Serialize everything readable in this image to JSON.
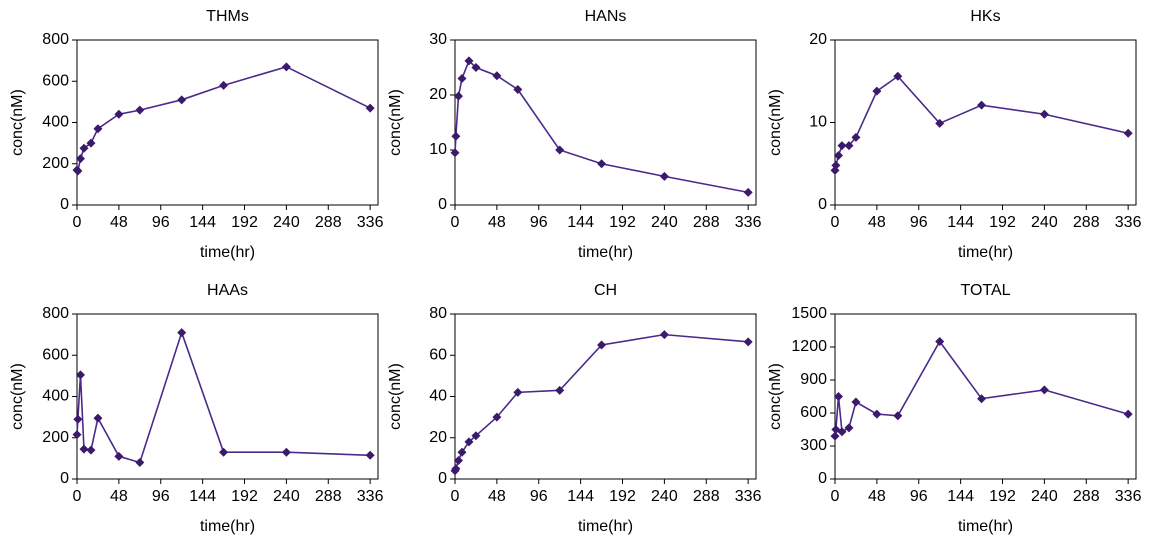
{
  "chart_data": [
    {
      "type": "line",
      "title": "THMs",
      "x_label": "time(hr)",
      "y_label": "conc(nM)",
      "color": "#4b2a8c",
      "x": [
        0,
        1,
        4,
        8,
        16,
        24,
        48,
        72,
        120,
        168,
        240,
        336
      ],
      "values": [
        170,
        165,
        225,
        275,
        300,
        370,
        440,
        460,
        510,
        580,
        670,
        470
      ],
      "xlim": [
        0,
        345
      ],
      "xticks": [
        0,
        48,
        96,
        144,
        192,
        240,
        288,
        336
      ],
      "ylim": [
        0,
        800
      ],
      "yticks": [
        0,
        200,
        400,
        600,
        800
      ]
    },
    {
      "type": "line",
      "title": "HANs",
      "x_label": "time(hr)",
      "y_label": "conc(nM)",
      "color": "#4b2a8c",
      "x": [
        0,
        1,
        4,
        8,
        16,
        24,
        48,
        72,
        120,
        168,
        240,
        336
      ],
      "values": [
        9.5,
        12.5,
        19.8,
        23,
        26.2,
        25,
        23.5,
        21,
        10,
        7.5,
        5.2,
        2.3
      ],
      "xlim": [
        0,
        345
      ],
      "xticks": [
        0,
        48,
        96,
        144,
        192,
        240,
        288,
        336
      ],
      "ylim": [
        0,
        30
      ],
      "yticks": [
        0,
        10,
        20,
        30
      ]
    },
    {
      "type": "line",
      "title": "HKs",
      "x_label": "time(hr)",
      "y_label": "conc(nM)",
      "color": "#4b2a8c",
      "x": [
        0,
        1,
        4,
        8,
        16,
        24,
        48,
        72,
        120,
        168,
        240,
        336
      ],
      "values": [
        4.2,
        4.8,
        6,
        7.2,
        7.2,
        8.2,
        13.8,
        15.6,
        9.9,
        12.1,
        11,
        8.7
      ],
      "xlim": [
        0,
        345
      ],
      "xticks": [
        0,
        48,
        96,
        144,
        192,
        240,
        288,
        336
      ],
      "ylim": [
        0,
        20
      ],
      "yticks": [
        0,
        10,
        20
      ]
    },
    {
      "type": "line",
      "title": "HAAs",
      "x_label": "time(hr)",
      "y_label": "conc(nM)",
      "color": "#4b2a8c",
      "x": [
        0,
        1,
        4,
        8,
        16,
        24,
        48,
        72,
        120,
        168,
        240,
        336
      ],
      "values": [
        215,
        290,
        505,
        145,
        140,
        295,
        110,
        80,
        710,
        130,
        130,
        115
      ],
      "xlim": [
        0,
        345
      ],
      "xticks": [
        0,
        48,
        96,
        144,
        192,
        240,
        288,
        336
      ],
      "ylim": [
        0,
        800
      ],
      "yticks": [
        0,
        200,
        400,
        600,
        800
      ]
    },
    {
      "type": "line",
      "title": "CH",
      "x_label": "time(hr)",
      "y_label": "conc(nM)",
      "color": "#4b2a8c",
      "x": [
        0,
        1,
        4,
        8,
        16,
        24,
        48,
        72,
        120,
        168,
        240,
        336
      ],
      "values": [
        4,
        5,
        9,
        13,
        18,
        21,
        30,
        42,
        43,
        65,
        70,
        66.5
      ],
      "xlim": [
        0,
        345
      ],
      "xticks": [
        0,
        48,
        96,
        144,
        192,
        240,
        288,
        336
      ],
      "ylim": [
        0,
        80
      ],
      "yticks": [
        0,
        20,
        40,
        60,
        80
      ]
    },
    {
      "type": "line",
      "title": "TOTAL",
      "x_label": "time(hr)",
      "y_label": "conc(nM)",
      "color": "#4b2a8c",
      "x": [
        0,
        1,
        4,
        8,
        16,
        24,
        48,
        72,
        120,
        168,
        240,
        336
      ],
      "values": [
        390,
        450,
        750,
        430,
        465,
        700,
        590,
        575,
        1250,
        730,
        810,
        590
      ],
      "xlim": [
        0,
        345
      ],
      "xticks": [
        0,
        48,
        96,
        144,
        192,
        240,
        288,
        336
      ],
      "ylim": [
        0,
        1500
      ],
      "yticks": [
        0,
        300,
        600,
        900,
        1200,
        1500
      ]
    }
  ]
}
